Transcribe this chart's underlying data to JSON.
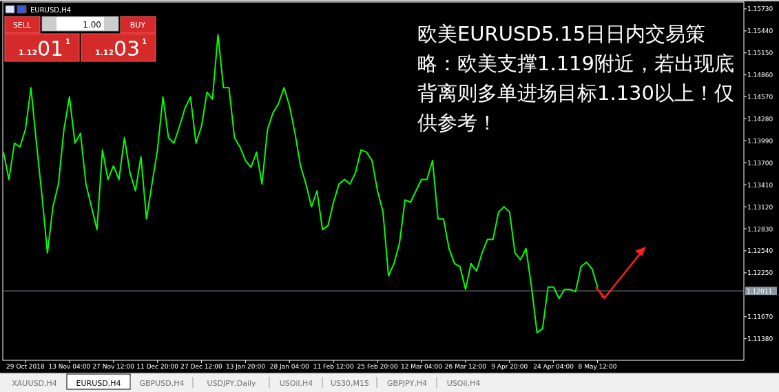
{
  "chart_data": {
    "type": "line",
    "title": "EURUSD,H4",
    "categories": [
      null,
      null,
      null,
      null,
      "29 Oct 2018",
      null,
      null,
      null,
      null,
      null,
      null,
      null,
      "13 Nov 04:00",
      null,
      null,
      null,
      null,
      null,
      null,
      null,
      "27 Nov 12:00",
      null,
      null,
      null,
      null,
      null,
      null,
      null,
      "11 Dec 20:00",
      null,
      null,
      null,
      null,
      null,
      null,
      null,
      "27 Dec 12:00",
      null,
      null,
      null,
      null,
      null,
      null,
      null,
      "13 Jan 20:00",
      null,
      null,
      null,
      null,
      null,
      null,
      null,
      "28 Jan 04:00",
      null,
      null,
      null,
      null,
      null,
      null,
      null,
      "11 Feb 12:00",
      null,
      null,
      null,
      null,
      null,
      null,
      null,
      "25 Feb 20:00",
      null,
      null,
      null,
      null,
      null,
      null,
      null,
      "12 Mar 04:00",
      null,
      null,
      null,
      null,
      null,
      null,
      null,
      "26 Mar 12:00",
      null,
      null,
      null,
      null,
      null,
      null,
      null,
      "9 Apr 20:00",
      null,
      null,
      null,
      null,
      null,
      null,
      null,
      "24 Apr 04:00",
      null,
      null,
      null,
      null,
      null,
      null,
      null,
      "8 May 12:00",
      null,
      null,
      null,
      null,
      null,
      null,
      null,
      null,
      null,
      null,
      null,
      null,
      null,
      null,
      null,
      null,
      null,
      null,
      null,
      null,
      null,
      null,
      null,
      null,
      null,
      null
    ],
    "series": [
      {
        "color": "#00ff00",
        "values": [
          1.1384,
          1.1348,
          1.1396,
          1.1391,
          1.1414,
          1.1469,
          1.1396,
          1.1327,
          1.1251,
          1.1312,
          1.1342,
          1.1414,
          1.1457,
          1.1396,
          1.1409,
          1.1342,
          1.1312,
          1.1282,
          1.1387,
          1.1348,
          1.1366,
          1.1348,
          1.1403,
          1.1357,
          1.1333,
          1.1378,
          1.1296,
          1.1342,
          1.1387,
          1.1457,
          1.1403,
          1.1396,
          1.1418,
          1.1442,
          1.1457,
          1.1396,
          1.1418,
          1.1463,
          1.1454,
          1.1539,
          1.1469,
          1.1469,
          1.1403,
          1.1391,
          1.1373,
          1.1364,
          1.1384,
          1.1342,
          1.1414,
          1.1436,
          1.1448,
          1.1469,
          1.1445,
          1.1409,
          1.1366,
          1.1342,
          1.1312,
          1.1333,
          1.1282,
          1.1287,
          1.1318,
          1.1342,
          1.1348,
          1.1342,
          1.1357,
          1.1387,
          1.1384,
          1.1373,
          1.1333,
          1.1305,
          1.1221,
          1.1237,
          1.1264,
          1.1321,
          1.1318,
          1.1333,
          1.1348,
          1.1348,
          1.1373,
          1.1296,
          1.1296,
          1.1257,
          1.1237,
          1.1233,
          1.1203,
          1.1237,
          1.1227,
          1.1251,
          1.1269,
          1.1269,
          1.1305,
          1.1312,
          1.1305,
          1.1251,
          1.1242,
          1.1257,
          1.1206,
          1.1146,
          1.1151,
          1.1206,
          1.1206,
          1.1191,
          1.1203,
          1.1203,
          1.12,
          1.1233,
          1.1239,
          1.123,
          1.1206,
          null,
          null,
          null,
          null,
          null,
          null,
          null,
          null,
          null,
          null,
          null,
          null,
          null,
          null,
          null,
          null,
          null,
          null,
          null,
          null,
          null,
          null,
          null,
          null,
          null,
          null
        ]
      }
    ],
    "ylim": [
      1.11095,
      1.1582
    ],
    "yticks": [
      {
        "value": 1.1573,
        "label": "1.15730"
      },
      {
        "value": 1.1544,
        "label": "1.15440"
      },
      {
        "value": 1.1515,
        "label": "1.15150"
      },
      {
        "value": 1.1486,
        "label": "1.14860"
      },
      {
        "value": 1.1457,
        "label": "1.14570"
      },
      {
        "value": 1.1428,
        "label": "1.14280"
      },
      {
        "value": 1.1399,
        "label": "1.13990"
      },
      {
        "value": 1.137,
        "label": "1.13700"
      },
      {
        "value": 1.1341,
        "label": "1.13410"
      },
      {
        "value": 1.1312,
        "label": "1.13120"
      },
      {
        "value": 1.1283,
        "label": "1.12830"
      },
      {
        "value": 1.1254,
        "label": "1.12540"
      },
      {
        "value": 1.1225,
        "label": "1.12250"
      },
      {
        "value": 1.1167,
        "label": "1.11670"
      },
      {
        "value": 1.1138,
        "label": "1.11380"
      }
    ],
    "ref_lines": [
      {
        "axis": "y",
        "value": 1.12011,
        "label": "1.12011",
        "color": "#8a96a3"
      }
    ],
    "annotations": [
      "欧美EURUSD5.15日日内交易策略：欧美支撑1.119附近，若出现底背离则多单进场目标1.130以上！仅供参考！",
      "SELL",
      "1.00",
      "BUY",
      "1.12",
      "01",
      "1",
      "1.12",
      "03",
      "1",
      "XAUUSD,H4",
      "EURUSD,H4",
      "GBPUSD,H4",
      "USDJPY,Daily",
      "USOil,H4",
      "US30,M15",
      "GBPJPY,H4",
      "USOil,H4"
    ]
  }
}
